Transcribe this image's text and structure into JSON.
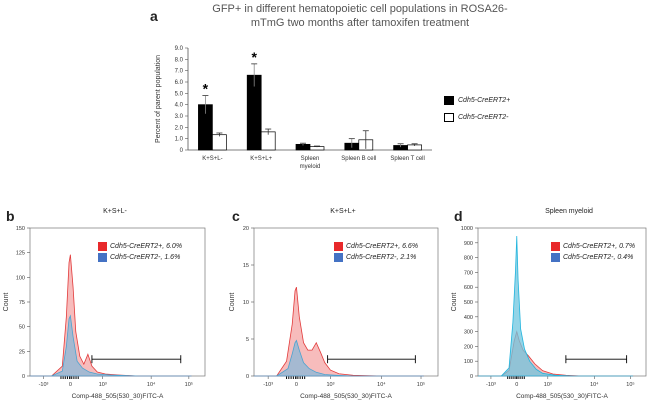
{
  "panel_labels": [
    "a",
    "b",
    "c",
    "d"
  ],
  "chart_data": [
    {
      "type": "bar",
      "title": "GFP+ in different  hematopoietic cell populations in ROSA26-mTmG two months after tamoxifen treatment",
      "ylabel": "Percent of parent population",
      "xlabel": "",
      "ylim": [
        0,
        9
      ],
      "yticks": [
        "0",
        "1.0",
        "2.0",
        "3.0",
        "4.0",
        "5.0",
        "6.0",
        "7.0",
        "8.0",
        "9.0"
      ],
      "categories": [
        "K+S+L-",
        "K+S+L+",
        "Spleen myeloid",
        "Spleen B cell",
        "Spleen T cell"
      ],
      "series": [
        {
          "name": "Cdh5-CreERT2+",
          "color": "#000000",
          "values": [
            4.0,
            6.6,
            0.5,
            0.6,
            0.4
          ],
          "errors": [
            0.8,
            1.0,
            0.1,
            0.4,
            0.15
          ]
        },
        {
          "name": "Cdh5-CreERT2-",
          "color": "#ffffff",
          "values": [
            1.35,
            1.6,
            0.3,
            0.9,
            0.45
          ],
          "errors": [
            0.15,
            0.25,
            0.05,
            0.8,
            0.1
          ]
        }
      ],
      "significance": [
        "*",
        "*",
        "",
        "",
        ""
      ]
    },
    {
      "type": "area",
      "panel": "b",
      "title": "K+S+L-",
      "xlabel": "Comp-488_505(530_30)FITC-A",
      "ylabel": "Count",
      "ylim": [
        0,
        150
      ],
      "yticks": [
        "0",
        "25",
        "50",
        "75",
        "100",
        "125",
        "150"
      ],
      "xticks": [
        "-10³",
        "0",
        "10³",
        "10⁴",
        "10⁵"
      ],
      "gate": [
        0.8,
        4.1
      ],
      "series": [
        {
          "name": "Cdh5-CreERT2+",
          "legend": "Cdh5-CreERT2+, 6.0%",
          "color": "#f4a5a5",
          "stroke": "#e23b3b",
          "x": [
            -1.5,
            -0.7,
            -0.3,
            -0.15,
            -0.05,
            0,
            0.1,
            0.2,
            0.35,
            0.5,
            0.65,
            0.8,
            1.0,
            1.3,
            1.8,
            2.5,
            3.5,
            4.5
          ],
          "y": [
            0,
            0,
            10,
            60,
            115,
            123,
            90,
            45,
            20,
            12,
            22,
            10,
            4,
            2,
            1,
            0,
            0,
            0
          ]
        },
        {
          "name": "Cdh5-CreERT2-",
          "legend": "Cdh5-CreERT2-, 1.6%",
          "color": "#8ab8d8",
          "stroke": "#4aa3d0",
          "x": [
            -1.5,
            -0.7,
            -0.3,
            -0.15,
            -0.05,
            0,
            0.1,
            0.25,
            0.45,
            0.7,
            1.0,
            1.5,
            2.5,
            4.5
          ],
          "y": [
            0,
            0,
            5,
            30,
            58,
            61,
            40,
            15,
            8,
            4,
            2,
            1,
            0,
            0
          ]
        }
      ]
    },
    {
      "type": "area",
      "panel": "c",
      "title": "K+S+L+",
      "xlabel": "Comp-488_505(530_30)FITC-A",
      "ylabel": "Count",
      "ylim": [
        0,
        20
      ],
      "yticks": [
        "0",
        "5",
        "10",
        "15",
        "20"
      ],
      "xticks": [
        "-10³",
        "0",
        "10³",
        "10⁴",
        "10⁵"
      ],
      "gate": [
        1.1,
        4.2
      ],
      "series": [
        {
          "name": "Cdh5-CreERT2+",
          "legend": "Cdh5-CreERT2+, 6.6%",
          "color": "#f4a5a5",
          "stroke": "#e23b3b",
          "x": [
            -1.5,
            -0.7,
            -0.35,
            -0.15,
            -0.05,
            0,
            0.1,
            0.25,
            0.4,
            0.55,
            0.7,
            0.85,
            1.0,
            1.2,
            1.5,
            2.0,
            3.0,
            4.5
          ],
          "y": [
            0,
            0,
            2,
            7,
            11.5,
            12,
            8,
            4.5,
            3.5,
            3.5,
            4.5,
            3.2,
            1.8,
            0.8,
            0.3,
            0.1,
            0,
            0
          ]
        },
        {
          "name": "Cdh5-CreERT2-",
          "legend": "Cdh5-CreERT2-, 2.1%",
          "color": "#8ab8d8",
          "stroke": "#4aa3d0",
          "x": [
            -1.5,
            -0.7,
            -0.3,
            -0.15,
            -0.05,
            0,
            0.1,
            0.25,
            0.45,
            0.7,
            1.0,
            1.4,
            2.0,
            4.5
          ],
          "y": [
            0,
            0,
            1,
            3,
            4.5,
            4.8,
            3.5,
            1.8,
            1.0,
            0.5,
            0.2,
            0.1,
            0,
            0
          ]
        }
      ]
    },
    {
      "type": "area",
      "panel": "d",
      "title": "Spleen myeloid",
      "xlabel": "Comp-488_505(530_30)FITC-A",
      "ylabel": "Count",
      "ylim": [
        0,
        1100
      ],
      "yticks": [
        "0",
        "100",
        "200",
        "300",
        "400",
        "500",
        "600",
        "700",
        "800",
        "900",
        "1000"
      ],
      "xticks": [
        "-10³",
        "0",
        "10³",
        "10⁴",
        "10⁵"
      ],
      "gate": [
        1.9,
        4.25
      ],
      "series": [
        {
          "name": "Cdh5-CreERT2+",
          "legend": "Cdh5-CreERT2+, 0.7%",
          "color": "#f4a5a5",
          "stroke": "#e23b3b",
          "x": [
            -1.5,
            -0.6,
            -0.3,
            -0.1,
            0,
            0.1,
            0.25,
            0.45,
            0.7,
            1.0,
            1.4,
            1.9,
            2.5,
            4.5
          ],
          "y": [
            0,
            0,
            40,
            260,
            330,
            260,
            190,
            150,
            90,
            40,
            15,
            5,
            0,
            0
          ]
        },
        {
          "name": "Cdh5-CreERT2-",
          "legend": "Cdh5-CreERT2-, 0.4%",
          "color": "#6fc6df",
          "stroke": "#22b5de",
          "x": [
            -1.5,
            -0.6,
            -0.3,
            -0.15,
            -0.05,
            0,
            0.05,
            0.15,
            0.3,
            0.5,
            0.75,
            1.0,
            1.5,
            2.2,
            4.5
          ],
          "y": [
            0,
            0,
            60,
            400,
            780,
            1040,
            720,
            350,
            200,
            110,
            50,
            20,
            5,
            0,
            0
          ]
        }
      ]
    }
  ]
}
